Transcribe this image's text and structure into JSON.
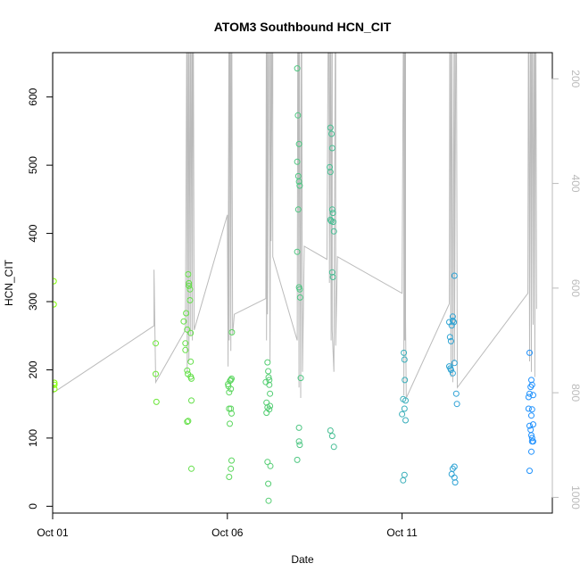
{
  "chart_data": {
    "type": "scatter",
    "title": "ATOM3 Southbound HCN_CIT",
    "xlabel": "Date",
    "ylabel": "HCN_CIT",
    "xlim": [
      0,
      14.3
    ],
    "ylim": [
      -10,
      665
    ],
    "x_ticks": [
      {
        "value": 0,
        "label": "Oct 01"
      },
      {
        "value": 5,
        "label": "Oct 06"
      },
      {
        "value": 10,
        "label": "Oct 11"
      }
    ],
    "y_ticks": [
      0,
      100,
      200,
      300,
      400,
      500,
      600
    ],
    "y2_ticks": [
      200,
      400,
      600,
      800,
      1000
    ],
    "y2_range": [
      150,
      1030
    ],
    "y2_inverted": true,
    "point_color_gradient": [
      "#7fff00",
      "#1e90ff"
    ],
    "line_color": "#bbbbbb",
    "points": [
      [
        0.03,
        330
      ],
      [
        0.03,
        296
      ],
      [
        0.05,
        181
      ],
      [
        0.05,
        178
      ],
      [
        0.05,
        172
      ],
      [
        2.95,
        239
      ],
      [
        2.95,
        194
      ],
      [
        2.97,
        153
      ],
      [
        3.75,
        271
      ],
      [
        3.8,
        239
      ],
      [
        3.8,
        229
      ],
      [
        3.82,
        283
      ],
      [
        3.85,
        259
      ],
      [
        3.85,
        199
      ],
      [
        3.87,
        194
      ],
      [
        3.88,
        340
      ],
      [
        3.9,
        327
      ],
      [
        3.9,
        323
      ],
      [
        3.93,
        318
      ],
      [
        3.93,
        302
      ],
      [
        3.95,
        254
      ],
      [
        3.95,
        212
      ],
      [
        3.95,
        190
      ],
      [
        3.97,
        187
      ],
      [
        3.97,
        155
      ],
      [
        3.85,
        124
      ],
      [
        3.88,
        125
      ],
      [
        3.97,
        55
      ],
      [
        5.02,
        179
      ],
      [
        5.03,
        176
      ],
      [
        5.05,
        167
      ],
      [
        5.05,
        143
      ],
      [
        5.07,
        121
      ],
      [
        5.08,
        184
      ],
      [
        5.1,
        185
      ],
      [
        5.12,
        187
      ],
      [
        5.1,
        172
      ],
      [
        5.1,
        143
      ],
      [
        5.12,
        136
      ],
      [
        5.13,
        255
      ],
      [
        5.12,
        67
      ],
      [
        5.1,
        55
      ],
      [
        5.05,
        43
      ],
      [
        6.15,
        211
      ],
      [
        6.17,
        198
      ],
      [
        6.18,
        189
      ],
      [
        6.2,
        185
      ],
      [
        6.2,
        178
      ],
      [
        6.22,
        165
      ],
      [
        6.1,
        182
      ],
      [
        6.12,
        152
      ],
      [
        6.12,
        137
      ],
      [
        6.15,
        145
      ],
      [
        6.2,
        142
      ],
      [
        6.22,
        147
      ],
      [
        6.15,
        65
      ],
      [
        6.23,
        59
      ],
      [
        6.17,
        33
      ],
      [
        6.18,
        8
      ],
      [
        7.0,
        642
      ],
      [
        7.02,
        573
      ],
      [
        7.05,
        531
      ],
      [
        7.0,
        505
      ],
      [
        7.03,
        484
      ],
      [
        7.05,
        476
      ],
      [
        7.07,
        470
      ],
      [
        7.03,
        435
      ],
      [
        7.0,
        373
      ],
      [
        7.05,
        321
      ],
      [
        7.07,
        318
      ],
      [
        7.08,
        306
      ],
      [
        7.1,
        188
      ],
      [
        7.05,
        115
      ],
      [
        7.05,
        95
      ],
      [
        7.07,
        90
      ],
      [
        7.0,
        68
      ],
      [
        7.95,
        555
      ],
      [
        7.98,
        546
      ],
      [
        8.0,
        525
      ],
      [
        7.93,
        497
      ],
      [
        7.95,
        490
      ],
      [
        8.0,
        435
      ],
      [
        8.02,
        430
      ],
      [
        7.95,
        420
      ],
      [
        8.03,
        417
      ],
      [
        7.97,
        418
      ],
      [
        8.05,
        403
      ],
      [
        8.0,
        343
      ],
      [
        8.02,
        336
      ],
      [
        7.95,
        111
      ],
      [
        8.0,
        103
      ],
      [
        8.05,
        87
      ],
      [
        10.05,
        225
      ],
      [
        10.07,
        215
      ],
      [
        10.08,
        185
      ],
      [
        10.03,
        157
      ],
      [
        10.1,
        155
      ],
      [
        10.07,
        143
      ],
      [
        10.0,
        135
      ],
      [
        10.1,
        126
      ],
      [
        10.07,
        46
      ],
      [
        10.03,
        38
      ],
      [
        11.35,
        270
      ],
      [
        11.37,
        248
      ],
      [
        11.4,
        242
      ],
      [
        11.42,
        265
      ],
      [
        11.45,
        278
      ],
      [
        11.45,
        272
      ],
      [
        11.5,
        338
      ],
      [
        11.48,
        270
      ],
      [
        11.35,
        205
      ],
      [
        11.38,
        202
      ],
      [
        11.4,
        200
      ],
      [
        11.45,
        195
      ],
      [
        11.5,
        210
      ],
      [
        11.55,
        165
      ],
      [
        11.57,
        150
      ],
      [
        11.45,
        55
      ],
      [
        11.5,
        58
      ],
      [
        11.42,
        47
      ],
      [
        11.5,
        42
      ],
      [
        11.52,
        35
      ],
      [
        13.65,
        225
      ],
      [
        13.7,
        185
      ],
      [
        13.68,
        175
      ],
      [
        13.72,
        178
      ],
      [
        13.75,
        163
      ],
      [
        13.72,
        142
      ],
      [
        13.7,
        133
      ],
      [
        13.75,
        120
      ],
      [
        13.65,
        165
      ],
      [
        13.62,
        160
      ],
      [
        13.62,
        143
      ],
      [
        13.65,
        118
      ],
      [
        13.68,
        112
      ],
      [
        13.7,
        104
      ],
      [
        13.72,
        100
      ],
      [
        13.72,
        95
      ],
      [
        13.75,
        95
      ],
      [
        13.7,
        80
      ],
      [
        13.65,
        52
      ]
    ],
    "line_path": [
      [
        0,
        -50
      ],
      [
        0.02,
        800
      ],
      [
        2.9,
        672
      ],
      [
        2.9,
        565
      ],
      [
        2.95,
        780
      ],
      [
        3.8,
        680
      ],
      [
        3.85,
        -80
      ],
      [
        3.85,
        760
      ],
      [
        3.9,
        -80
      ],
      [
        3.9,
        740
      ],
      [
        3.95,
        -80
      ],
      [
        3.95,
        690
      ],
      [
        4.0,
        -80
      ],
      [
        4.0,
        700
      ],
      [
        4.02,
        -80
      ],
      [
        4.05,
        680
      ],
      [
        5.0,
        460
      ],
      [
        5.02,
        750
      ],
      [
        5.05,
        -80
      ],
      [
        5.05,
        700
      ],
      [
        5.08,
        -80
      ],
      [
        5.1,
        720
      ],
      [
        5.12,
        -80
      ],
      [
        5.15,
        690
      ],
      [
        5.2,
        650
      ],
      [
        6.1,
        620
      ],
      [
        6.12,
        -80
      ],
      [
        6.12,
        700
      ],
      [
        6.15,
        -80
      ],
      [
        6.15,
        650
      ],
      [
        6.2,
        -80
      ],
      [
        6.22,
        740
      ],
      [
        6.25,
        -80
      ],
      [
        6.25,
        510
      ],
      [
        6.3,
        -80
      ],
      [
        6.3,
        540
      ],
      [
        7.0,
        700
      ],
      [
        7.02,
        -80
      ],
      [
        7.05,
        790
      ],
      [
        7.05,
        -80
      ],
      [
        7.1,
        810
      ],
      [
        7.12,
        -80
      ],
      [
        7.15,
        760
      ],
      [
        7.2,
        520
      ],
      [
        7.85,
        545
      ],
      [
        7.9,
        -80
      ],
      [
        7.92,
        590
      ],
      [
        7.95,
        -80
      ],
      [
        7.97,
        700
      ],
      [
        8.0,
        -80
      ],
      [
        8.0,
        680
      ],
      [
        8.05,
        760
      ],
      [
        8.1,
        -80
      ],
      [
        8.1,
        710
      ],
      [
        8.15,
        540
      ],
      [
        10.0,
        610
      ],
      [
        10.05,
        -80
      ],
      [
        10.05,
        805
      ],
      [
        10.08,
        -80
      ],
      [
        10.08,
        700
      ],
      [
        10.1,
        -80
      ],
      [
        10.1,
        660
      ],
      [
        10.12,
        810
      ],
      [
        11.35,
        630
      ],
      [
        11.37,
        -80
      ],
      [
        11.4,
        770
      ],
      [
        11.42,
        -80
      ],
      [
        11.45,
        780
      ],
      [
        11.5,
        -80
      ],
      [
        11.5,
        740
      ],
      [
        11.55,
        -80
      ],
      [
        11.58,
        790
      ],
      [
        13.6,
        610
      ],
      [
        13.62,
        -80
      ],
      [
        13.65,
        740
      ],
      [
        13.68,
        -80
      ],
      [
        13.7,
        760
      ],
      [
        13.72,
        -80
      ],
      [
        13.75,
        670
      ],
      [
        13.78,
        -80
      ],
      [
        13.8,
        770
      ],
      [
        13.82,
        -80
      ],
      [
        13.85,
        640
      ]
    ]
  }
}
